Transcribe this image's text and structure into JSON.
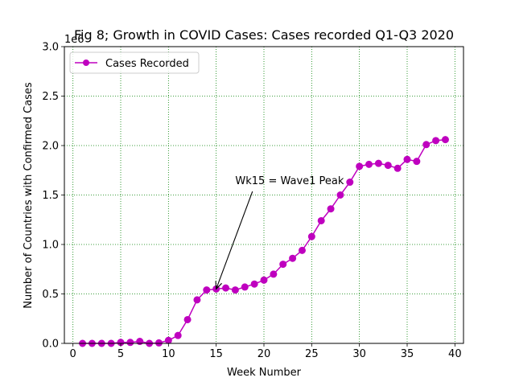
{
  "chart_data": {
    "type": "line",
    "title": "Fig 8; Growth in COVID Cases: Cases recorded Q1-Q3 2020",
    "xlabel": "Week Number",
    "ylabel": "Number of Countries with Confirmed Cases",
    "y_offset_label": "1e6",
    "xlim": [
      -0.9,
      40.9
    ],
    "ylim": [
      0,
      3000000
    ],
    "xticks": [
      0,
      5,
      10,
      15,
      20,
      25,
      30,
      35,
      40
    ],
    "xtick_labels": [
      "0",
      "5",
      "10",
      "15",
      "20",
      "25",
      "30",
      "35",
      "40"
    ],
    "yticks": [
      0,
      500000,
      1000000,
      1500000,
      2000000,
      2500000,
      3000000
    ],
    "ytick_labels": [
      "0.0",
      "0.5",
      "1.0",
      "1.5",
      "2.0",
      "2.5",
      "3.0"
    ],
    "grid": true,
    "grid_color": "#008000",
    "legend_position": "top-left",
    "series": [
      {
        "name": "Cases Recorded",
        "color": "#bf00bf",
        "marker": "circle",
        "x": [
          1,
          2,
          3,
          4,
          5,
          6,
          7,
          8,
          9,
          10,
          11,
          12,
          13,
          14,
          15,
          16,
          17,
          18,
          19,
          20,
          21,
          22,
          23,
          24,
          25,
          26,
          27,
          28,
          29,
          30,
          31,
          32,
          33,
          34,
          35,
          36,
          37,
          38,
          39
        ],
        "values": [
          0,
          0,
          0,
          0,
          10000,
          10000,
          20000,
          0,
          5000,
          30000,
          80000,
          240000,
          440000,
          540000,
          550000,
          560000,
          540000,
          570000,
          600000,
          640000,
          700000,
          800000,
          860000,
          940000,
          1080000,
          1240000,
          1360000,
          1500000,
          1630000,
          1790000,
          1810000,
          1820000,
          1800000,
          1770000,
          1860000,
          1840000,
          2010000,
          2050000,
          2060000
        ]
      }
    ],
    "annotations": [
      {
        "text": "Wk15 = Wave1 Peak",
        "text_x": 17,
        "text_y": 1650000,
        "point_x": 15,
        "point_y": 550000
      }
    ]
  }
}
